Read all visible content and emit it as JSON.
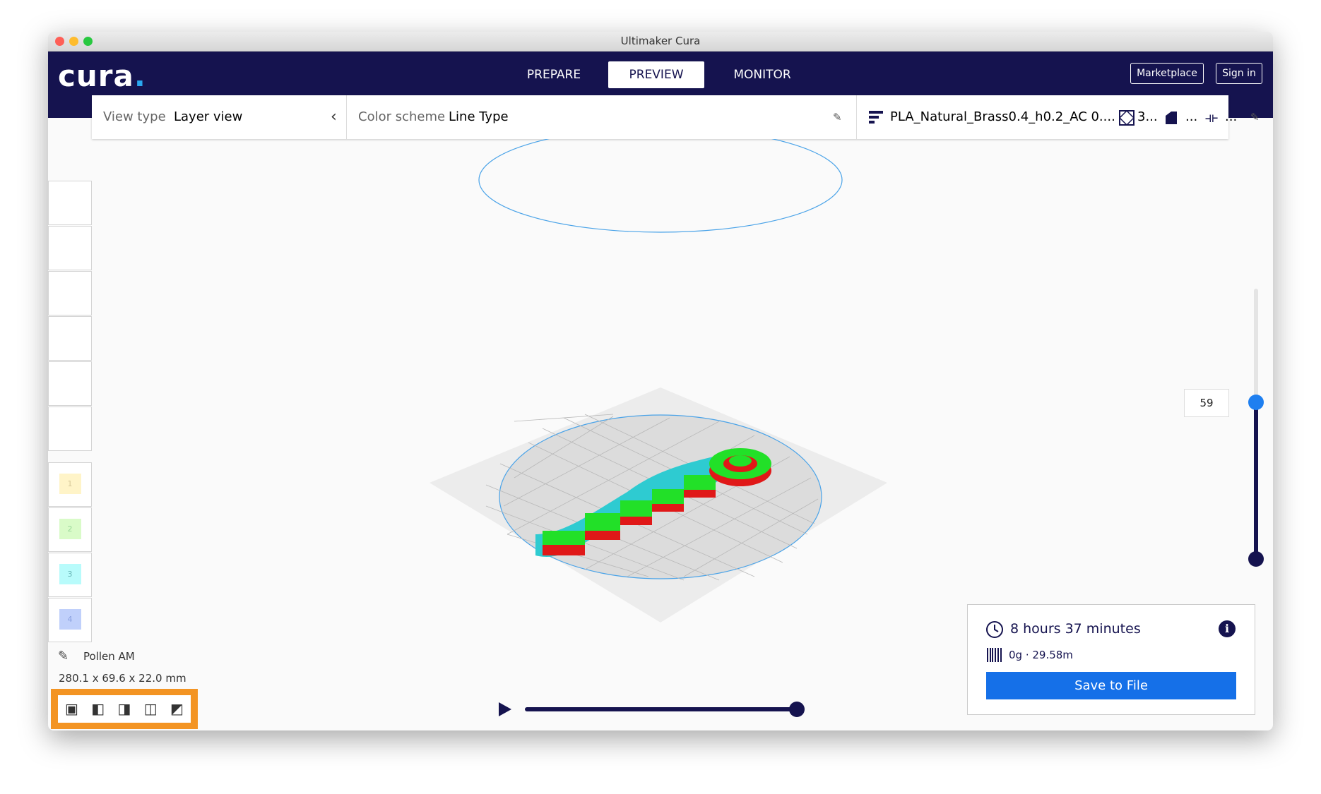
{
  "window": {
    "title": "Ultimaker Cura"
  },
  "header": {
    "logo": "cura",
    "tabs": [
      "PREPARE",
      "PREVIEW",
      "MONITOR"
    ],
    "buttons": [
      "Marketplace",
      "Sign in"
    ]
  },
  "toolbar": {
    "view_type_label": "View type",
    "view_type": "Layer view",
    "color_scheme_label": "Color scheme",
    "color_scheme": "Line Type",
    "profile": "PLA_Natural_Brass0.4_h0.2_AC 0....",
    "infill": "3...",
    "support": "...",
    "adhesion": "..."
  },
  "extruders": [
    "1",
    "2",
    "3",
    "4"
  ],
  "object": {
    "printer": "Pollen AM",
    "dimensions": "280.1 x 69.6 x 22.0 mm"
  },
  "layer_slider": {
    "current": 59
  },
  "print_info": {
    "time": "8 hours 37 minutes",
    "material": "0g · 29.58m",
    "save": "Save to File"
  }
}
